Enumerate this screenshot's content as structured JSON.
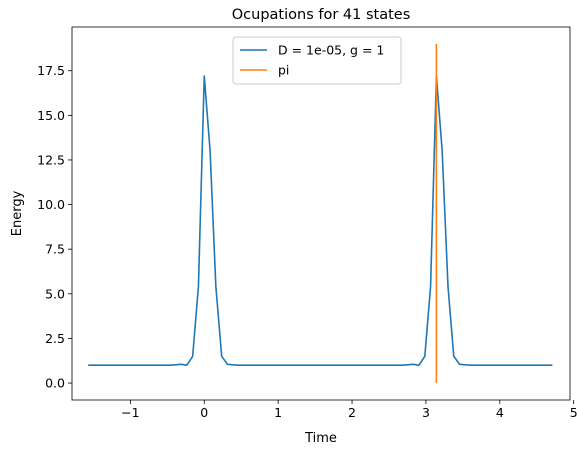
{
  "chart_data": {
    "type": "line",
    "title": "Ocupations for 41 states",
    "xlabel": "Time",
    "ylabel": "Energy",
    "xlim": [
      -1.79,
      4.95
    ],
    "ylim": [
      -0.95,
      19.95
    ],
    "xticks": [
      -1,
      0,
      1,
      2,
      3,
      4,
      5
    ],
    "yticks": [
      0.0,
      2.5,
      5.0,
      7.5,
      10.0,
      12.5,
      15.0,
      17.5
    ],
    "xtick_labels": [
      "−1",
      "0",
      "1",
      "2",
      "3",
      "4",
      "5"
    ],
    "ytick_labels": [
      "0.0",
      "2.5",
      "5.0",
      "7.5",
      "10.0",
      "12.5",
      "15.0",
      "17.5"
    ],
    "grid": false,
    "legend_placement": "upper center",
    "series": [
      {
        "name": "D = 1e-05, g = 1",
        "color": "#1f77b4",
        "x": [
          -1.571,
          -1.492,
          -1.414,
          -1.335,
          -1.257,
          -1.178,
          -1.1,
          -1.021,
          -0.942,
          -0.864,
          -0.785,
          -0.707,
          -0.628,
          -0.55,
          -0.471,
          -0.393,
          -0.314,
          -0.236,
          -0.157,
          -0.079,
          0.0,
          0.079,
          0.157,
          0.236,
          0.314,
          0.393,
          0.471,
          0.55,
          0.628,
          0.707,
          0.785,
          0.864,
          0.942,
          1.021,
          1.1,
          1.178,
          1.257,
          1.335,
          1.414,
          1.492,
          1.571,
          1.649,
          1.728,
          1.806,
          1.885,
          1.963,
          2.042,
          2.121,
          2.199,
          2.278,
          2.356,
          2.435,
          2.513,
          2.592,
          2.67,
          2.749,
          2.827,
          2.906,
          2.985,
          3.063,
          3.142,
          3.22,
          3.299,
          3.377,
          3.456,
          3.534,
          3.613,
          3.691,
          3.77,
          3.848,
          3.927,
          4.006,
          4.084,
          4.163,
          4.241,
          4.32,
          4.398,
          4.477,
          4.555,
          4.634,
          4.712
        ],
        "y": [
          1.0,
          1.0,
          1.0,
          1.0,
          1.0,
          1.0,
          1.0,
          1.0,
          1.0,
          1.0,
          1.0,
          1.0,
          1.0,
          1.0,
          1.0,
          1.02,
          1.05,
          1.0,
          1.5,
          5.4,
          17.2,
          13.0,
          5.4,
          1.5,
          1.05,
          1.02,
          1.0,
          1.0,
          1.0,
          1.0,
          1.0,
          1.0,
          1.0,
          1.0,
          1.0,
          1.0,
          1.0,
          1.0,
          1.0,
          1.0,
          1.0,
          1.0,
          1.0,
          1.0,
          1.0,
          1.0,
          1.0,
          1.0,
          1.0,
          1.0,
          1.0,
          1.0,
          1.0,
          1.0,
          1.0,
          1.02,
          1.05,
          1.0,
          1.5,
          5.4,
          17.2,
          13.0,
          5.4,
          1.5,
          1.05,
          1.02,
          1.0,
          1.0,
          1.0,
          1.0,
          1.0,
          1.0,
          1.0,
          1.0,
          1.0,
          1.0,
          1.0,
          1.0,
          1.0,
          1.0,
          1.0
        ]
      },
      {
        "name": "pi",
        "color": "#ff7f0e",
        "x": [
          3.1416,
          3.1416
        ],
        "y": [
          0.0,
          19.0
        ]
      }
    ]
  }
}
